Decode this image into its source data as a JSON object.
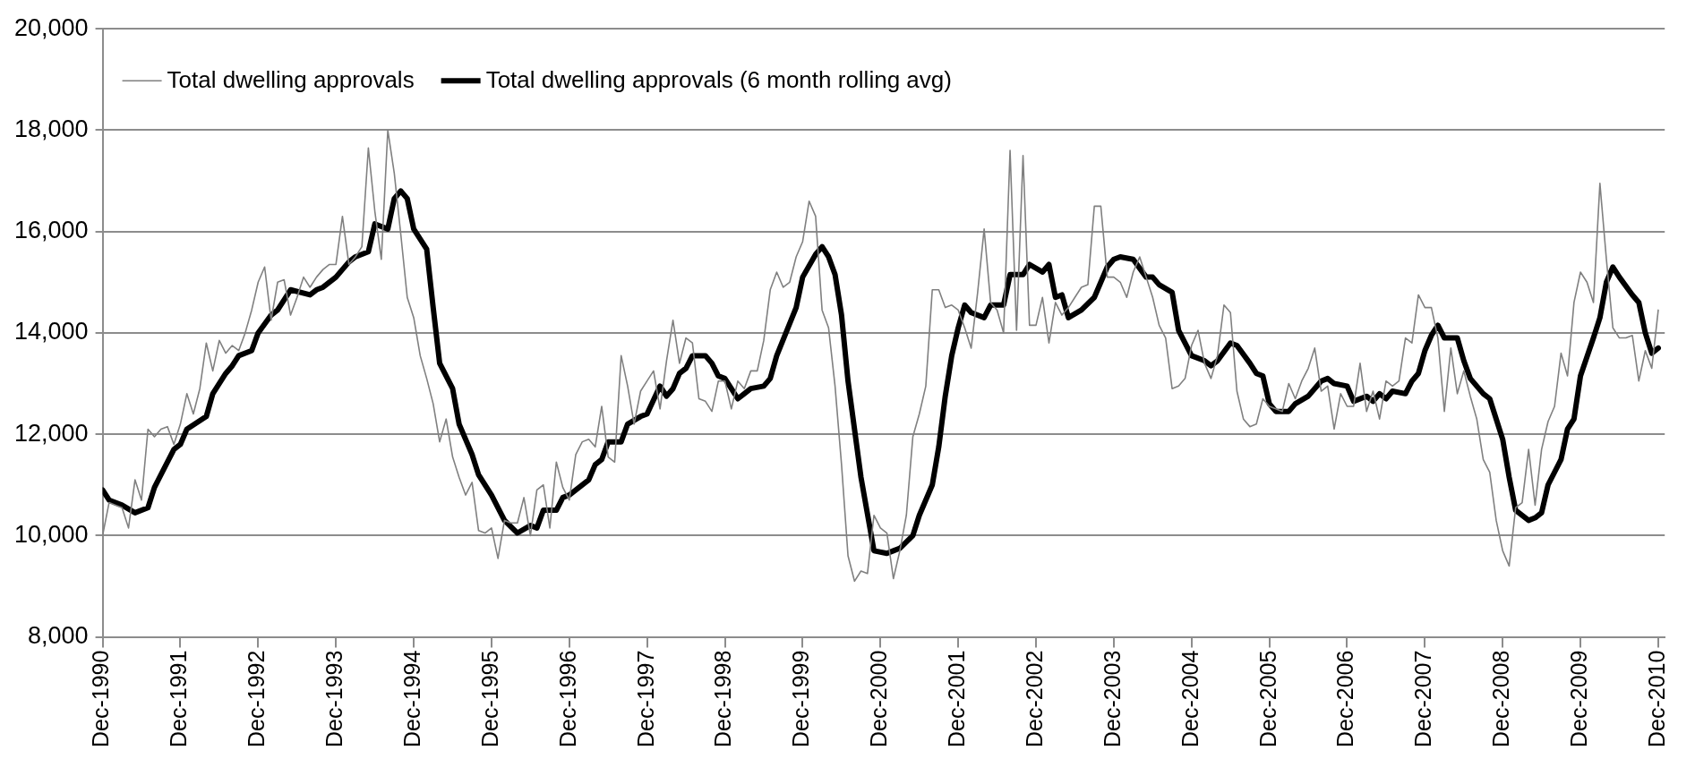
{
  "chart_data": {
    "type": "line",
    "x": [
      "1990-12",
      "1991-01",
      "1991-02",
      "1991-03",
      "1991-04",
      "1991-05",
      "1991-06",
      "1991-07",
      "1991-08",
      "1991-09",
      "1991-10",
      "1991-11",
      "1991-12",
      "1992-01",
      "1992-02",
      "1992-03",
      "1992-04",
      "1992-05",
      "1992-06",
      "1992-07",
      "1992-08",
      "1992-09",
      "1992-10",
      "1992-11",
      "1992-12",
      "1993-01",
      "1993-02",
      "1993-03",
      "1993-04",
      "1993-05",
      "1993-06",
      "1993-07",
      "1993-08",
      "1993-09",
      "1993-10",
      "1993-11",
      "1993-12",
      "1994-01",
      "1994-02",
      "1994-03",
      "1994-04",
      "1994-05",
      "1994-06",
      "1994-07",
      "1994-08",
      "1994-09",
      "1994-10",
      "1994-11",
      "1994-12",
      "1995-01",
      "1995-02",
      "1995-03",
      "1995-04",
      "1995-05",
      "1995-06",
      "1995-07",
      "1995-08",
      "1995-09",
      "1995-10",
      "1995-11",
      "1995-12",
      "1996-01",
      "1996-02",
      "1996-03",
      "1996-04",
      "1996-05",
      "1996-06",
      "1996-07",
      "1996-08",
      "1996-09",
      "1996-10",
      "1996-11",
      "1996-12",
      "1997-01",
      "1997-02",
      "1997-03",
      "1997-04",
      "1997-05",
      "1997-06",
      "1997-07",
      "1997-08",
      "1997-09",
      "1997-10",
      "1997-11",
      "1997-12",
      "1998-01",
      "1998-02",
      "1998-03",
      "1998-04",
      "1998-05",
      "1998-06",
      "1998-07",
      "1998-08",
      "1998-09",
      "1998-10",
      "1998-11",
      "1998-12",
      "1999-01",
      "1999-02",
      "1999-03",
      "1999-04",
      "1999-05",
      "1999-06",
      "1999-07",
      "1999-08",
      "1999-09",
      "1999-10",
      "1999-11",
      "1999-12",
      "2000-01",
      "2000-02",
      "2000-03",
      "2000-04",
      "2000-05",
      "2000-06",
      "2000-07",
      "2000-08",
      "2000-09",
      "2000-10",
      "2000-11",
      "2000-12",
      "2001-01",
      "2001-02",
      "2001-03",
      "2001-04",
      "2001-05",
      "2001-06",
      "2001-07",
      "2001-08",
      "2001-09",
      "2001-10",
      "2001-11",
      "2001-12",
      "2002-01",
      "2002-02",
      "2002-03",
      "2002-04",
      "2002-05",
      "2002-06",
      "2002-07",
      "2002-08",
      "2002-09",
      "2002-10",
      "2002-11",
      "2002-12",
      "2003-01",
      "2003-02",
      "2003-03",
      "2003-04",
      "2003-05",
      "2003-06",
      "2003-07",
      "2003-08",
      "2003-09",
      "2003-10",
      "2003-11",
      "2003-12",
      "2004-01",
      "2004-02",
      "2004-03",
      "2004-04",
      "2004-05",
      "2004-06",
      "2004-07",
      "2004-08",
      "2004-09",
      "2004-10",
      "2004-11",
      "2004-12",
      "2005-01",
      "2005-02",
      "2005-03",
      "2005-04",
      "2005-05",
      "2005-06",
      "2005-07",
      "2005-08",
      "2005-09",
      "2005-10",
      "2005-11",
      "2005-12",
      "2006-01",
      "2006-02",
      "2006-03",
      "2006-04",
      "2006-05",
      "2006-06",
      "2006-07",
      "2006-08",
      "2006-09",
      "2006-10",
      "2006-11",
      "2006-12",
      "2007-01",
      "2007-02",
      "2007-03",
      "2007-04",
      "2007-05",
      "2007-06",
      "2007-07",
      "2007-08",
      "2007-09",
      "2007-10",
      "2007-11",
      "2007-12",
      "2008-01",
      "2008-02",
      "2008-03",
      "2008-04",
      "2008-05",
      "2008-06",
      "2008-07",
      "2008-08",
      "2008-09",
      "2008-10",
      "2008-11",
      "2008-12",
      "2009-01",
      "2009-02",
      "2009-03",
      "2009-04",
      "2009-05",
      "2009-06",
      "2009-07",
      "2009-08",
      "2009-09",
      "2009-10",
      "2009-11",
      "2009-12",
      "2010-01",
      "2010-02",
      "2010-03",
      "2010-04",
      "2010-05",
      "2010-06",
      "2010-07",
      "2010-08",
      "2010-09",
      "2010-10",
      "2010-11",
      "2010-12"
    ],
    "series": [
      {
        "name": "Total dwelling approvals",
        "color": "#808080",
        "values": [
          10000,
          10650,
          10600,
          10550,
          10150,
          11100,
          10700,
          12100,
          11950,
          12100,
          12150,
          11800,
          12200,
          12800,
          12400,
          12900,
          13800,
          13250,
          13850,
          13600,
          13750,
          13650,
          14000,
          14450,
          15000,
          15300,
          14250,
          15000,
          15050,
          14350,
          14700,
          15100,
          14900,
          15100,
          15250,
          15350,
          15350,
          16300,
          15350,
          15500,
          15700,
          17650,
          16400,
          15450,
          18000,
          17150,
          15950,
          14700,
          14300,
          13550,
          13100,
          12600,
          11850,
          12300,
          11550,
          11150,
          10800,
          11050,
          10100,
          10050,
          10150,
          9550,
          10300,
          10250,
          10250,
          10750,
          10000,
          10900,
          11000,
          10150,
          11450,
          10950,
          10700,
          11600,
          11850,
          11900,
          11750,
          12550,
          11550,
          11450,
          13550,
          12950,
          12200,
          12850,
          13050,
          13250,
          12500,
          13450,
          14250,
          13400,
          13900,
          13800,
          12700,
          12650,
          12450,
          13050,
          13050,
          12500,
          13050,
          12900,
          13250,
          13250,
          13850,
          14850,
          15200,
          14900,
          15000,
          15500,
          15800,
          16600,
          16300,
          14450,
          14100,
          12950,
          11400,
          9600,
          9100,
          9300,
          9250,
          10400,
          10150,
          10050,
          9150,
          9700,
          10400,
          11950,
          12400,
          12950,
          14850,
          14850,
          14500,
          14550,
          14450,
          14100,
          13700,
          14800,
          16050,
          14600,
          14450,
          14000,
          17600,
          14050,
          17500,
          14150,
          14150,
          14700,
          13800,
          14600,
          14350,
          14500,
          14700,
          14900,
          14950,
          16500,
          16500,
          15100,
          15100,
          15000,
          14700,
          15200,
          15500,
          15100,
          14700,
          14150,
          13900,
          12900,
          12950,
          13100,
          13750,
          14050,
          13400,
          13100,
          13550,
          14550,
          14400,
          12850,
          12300,
          12150,
          12200,
          12700,
          12550,
          12500,
          12450,
          13000,
          12700,
          13050,
          13300,
          13700,
          12850,
          12950,
          12100,
          12800,
          12550,
          12550,
          13400,
          12450,
          12850,
          12300,
          13050,
          12950,
          13050,
          13900,
          13800,
          14750,
          14500,
          14500,
          13900,
          12450,
          13700,
          12800,
          13250,
          12750,
          12300,
          11500,
          11250,
          10300,
          9700,
          9400,
          10550,
          10650,
          11700,
          10600,
          11700,
          12250,
          12550,
          13600,
          13150,
          14600,
          15200,
          15000,
          14600,
          16950,
          15450,
          14100,
          13900,
          13900,
          13950,
          13050,
          13650,
          13300,
          14450
        ]
      },
      {
        "name": "Total dwelling approvals (6 month rolling avg)",
        "color": "#000000",
        "x": [
          "1990-12",
          "1991-01",
          "1991-03",
          "1991-05",
          "1991-07",
          "1991-08",
          "1991-09",
          "1991-11",
          "1991-12",
          "1992-01",
          "1992-04",
          "1992-05",
          "1992-07",
          "1992-08",
          "1992-09",
          "1992-11",
          "1992-12",
          "1993-02",
          "1993-03",
          "1993-05",
          "1993-08",
          "1993-09",
          "1993-10",
          "1993-12",
          "1994-02",
          "1994-03",
          "1994-05",
          "1994-06",
          "1994-08",
          "1994-09",
          "1994-10",
          "1994-11",
          "1994-12",
          "1995-02",
          "1995-03",
          "1995-04",
          "1995-06",
          "1995-07",
          "1995-09",
          "1995-10",
          "1995-12",
          "1996-02",
          "1996-04",
          "1996-06",
          "1996-07",
          "1996-08",
          "1996-10",
          "1996-11",
          "1996-12",
          "1997-03",
          "1997-04",
          "1997-05",
          "1997-06",
          "1997-08",
          "1997-09",
          "1997-11",
          "1997-12",
          "1998-02",
          "1998-03",
          "1998-04",
          "1998-05",
          "1998-06",
          "1998-07",
          "1998-09",
          "1998-10",
          "1998-11",
          "1998-12",
          "1999-01",
          "1999-02",
          "1999-03",
          "1999-04",
          "1999-06",
          "1999-07",
          "1999-08",
          "1999-11",
          "1999-12",
          "2000-02",
          "2000-03",
          "2000-04",
          "2000-05",
          "2000-06",
          "2000-07",
          "2000-09",
          "2000-11",
          "2001-01",
          "2001-02",
          "2001-03",
          "2001-05",
          "2001-06",
          "2001-08",
          "2001-09",
          "2001-10",
          "2001-11",
          "2001-12",
          "2002-01",
          "2002-02",
          "2002-04",
          "2002-05",
          "2002-07",
          "2002-08",
          "2002-10",
          "2002-11",
          "2003-01",
          "2003-02",
          "2003-03",
          "2003-04",
          "2003-05",
          "2003-07",
          "2003-09",
          "2003-11",
          "2003-12",
          "2004-01",
          "2004-03",
          "2004-05",
          "2004-06",
          "2004-07",
          "2004-09",
          "2004-10",
          "2004-12",
          "2005-02",
          "2005-03",
          "2005-04",
          "2005-06",
          "2005-07",
          "2005-09",
          "2005-10",
          "2005-11",
          "2005-12",
          "2006-01",
          "2006-03",
          "2006-04",
          "2006-06",
          "2006-08",
          "2006-09",
          "2006-10",
          "2006-12",
          "2007-01",
          "2007-03",
          "2007-04",
          "2007-05",
          "2007-06",
          "2007-07",
          "2007-09",
          "2007-10",
          "2007-11",
          "2007-12",
          "2008-01",
          "2008-02",
          "2008-03",
          "2008-05",
          "2008-06",
          "2008-07",
          "2008-09",
          "2008-10",
          "2008-12",
          "2009-01",
          "2009-02",
          "2009-04",
          "2009-05",
          "2009-06",
          "2009-07",
          "2009-09",
          "2009-10",
          "2009-11",
          "2009-12",
          "2010-02",
          "2010-03",
          "2010-04",
          "2010-05",
          "2010-06",
          "2010-08",
          "2010-09",
          "2010-10",
          "2010-11",
          "2010-12"
        ],
        "values": [
          10900,
          10700,
          10600,
          10450,
          10550,
          10950,
          11200,
          11700,
          11800,
          12100,
          12350,
          12800,
          13200,
          13350,
          13550,
          13650,
          14000,
          14350,
          14450,
          14850,
          14750,
          14850,
          14900,
          15100,
          15400,
          15500,
          15600,
          16150,
          16050,
          16650,
          16800,
          16650,
          16050,
          15650,
          14500,
          13400,
          12900,
          12200,
          11600,
          11200,
          10800,
          10300,
          10050,
          10200,
          10150,
          10500,
          10500,
          10750,
          10800,
          11100,
          11400,
          11500,
          11850,
          11850,
          12200,
          12350,
          12400,
          12950,
          12750,
          12900,
          13200,
          13300,
          13550,
          13550,
          13400,
          13150,
          13100,
          12900,
          12700,
          12800,
          12900,
          12950,
          13100,
          13550,
          14500,
          15100,
          15550,
          15700,
          15500,
          15150,
          14350,
          13050,
          11150,
          9700,
          9650,
          9700,
          9750,
          10000,
          10400,
          11000,
          11750,
          12750,
          13550,
          14100,
          14550,
          14400,
          14300,
          14550,
          14550,
          15150,
          15150,
          15350,
          15200,
          15350,
          14700,
          14750,
          14300,
          14450,
          14700,
          15300,
          15450,
          15500,
          15450,
          15100,
          15100,
          14950,
          14800,
          14050,
          13550,
          13450,
          13350,
          13450,
          13800,
          13750,
          13400,
          13200,
          13150,
          12600,
          12450,
          12450,
          12600,
          12750,
          13050,
          13100,
          13000,
          12950,
          12650,
          12750,
          12650,
          12800,
          12700,
          12850,
          12800,
          13050,
          13200,
          13650,
          13950,
          14150,
          13900,
          13900,
          13450,
          13100,
          12800,
          12700,
          11900,
          11150,
          10500,
          10300,
          10350,
          10450,
          11000,
          11500,
          12100,
          12300,
          13150,
          13900,
          14300,
          15000,
          15300,
          15100,
          14750,
          14600,
          14000,
          13600,
          13700
        ]
      }
    ],
    "xlim": [
      "1990-12",
      "2011-01"
    ],
    "xticks": [
      {
        "value": "1990-12",
        "label": "Dec-1990"
      },
      {
        "value": "1991-12",
        "label": "Dec-1991"
      },
      {
        "value": "1992-12",
        "label": "Dec-1992"
      },
      {
        "value": "1993-12",
        "label": "Dec-1993"
      },
      {
        "value": "1994-12",
        "label": "Dec-1994"
      },
      {
        "value": "1995-12",
        "label": "Dec-1995"
      },
      {
        "value": "1996-12",
        "label": "Dec-1996"
      },
      {
        "value": "1997-12",
        "label": "Dec-1997"
      },
      {
        "value": "1998-12",
        "label": "Dec-1998"
      },
      {
        "value": "1999-12",
        "label": "Dec-1999"
      },
      {
        "value": "2000-12",
        "label": "Dec-2000"
      },
      {
        "value": "2001-12",
        "label": "Dec-2001"
      },
      {
        "value": "2002-12",
        "label": "Dec-2002"
      },
      {
        "value": "2003-12",
        "label": "Dec-2003"
      },
      {
        "value": "2004-12",
        "label": "Dec-2004"
      },
      {
        "value": "2005-12",
        "label": "Dec-2005"
      },
      {
        "value": "2006-12",
        "label": "Dec-2006"
      },
      {
        "value": "2007-12",
        "label": "Dec-2007"
      },
      {
        "value": "2008-12",
        "label": "Dec-2008"
      },
      {
        "value": "2009-12",
        "label": "Dec-2009"
      },
      {
        "value": "2010-12",
        "label": "Dec-2010"
      }
    ],
    "ylim": [
      8000,
      20000
    ],
    "yticks": [
      {
        "value": 8000,
        "label": "8,000"
      },
      {
        "value": 10000,
        "label": "10,000"
      },
      {
        "value": 12000,
        "label": "12,000"
      },
      {
        "value": 14000,
        "label": "14,000"
      },
      {
        "value": 16000,
        "label": "16,000"
      },
      {
        "value": 18000,
        "label": "18,000"
      },
      {
        "value": 20000,
        "label": "20,000"
      }
    ],
    "grid": "y",
    "legend": "top left",
    "marker": "none",
    "line_style": "solid"
  }
}
